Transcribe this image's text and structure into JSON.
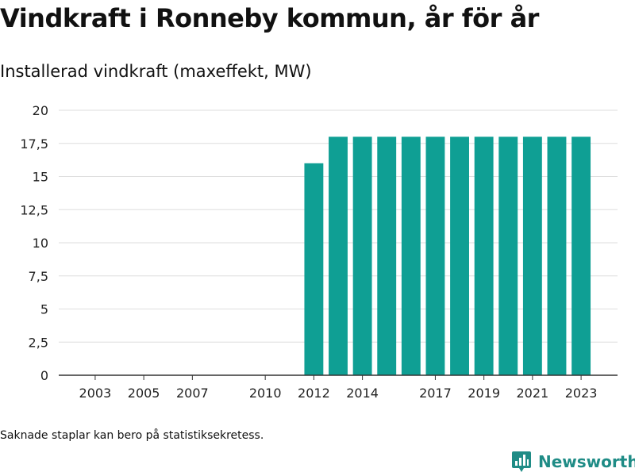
{
  "title": "Vindkraft i Ronneby kommun, år för år",
  "subtitle": "Installerad vindkraft (maxeffekt, MW)",
  "footnote": "Saknade staplar kan bero på statistiksekretess.",
  "brand": {
    "name": "Newsworthy",
    "icon": "newsworthy-logo-icon",
    "color": "#1f8c86"
  },
  "chart_data": {
    "type": "bar",
    "title": "",
    "xlabel": "",
    "ylabel": "",
    "ylim": [
      0,
      20
    ],
    "grid": true,
    "legend": "none",
    "bar_color": "#0f9f94",
    "categories": [
      "2012",
      "2013",
      "2014",
      "2015",
      "2016",
      "2017",
      "2018",
      "2019",
      "2020",
      "2021",
      "2022",
      "2023"
    ],
    "values": [
      16,
      18,
      18,
      18,
      18,
      18,
      18,
      18,
      18,
      18,
      18,
      18
    ],
    "x_range": [
      2001.5,
      2024.5
    ],
    "x_tick_labels": [
      "2003",
      "2005",
      "2007",
      "2010",
      "2012",
      "2014",
      "2017",
      "2019",
      "2021",
      "2023"
    ],
    "y_tick_labels": [
      "0",
      "2,5",
      "5",
      "7,5",
      "10",
      "12,5",
      "15",
      "17,5",
      "20"
    ]
  }
}
